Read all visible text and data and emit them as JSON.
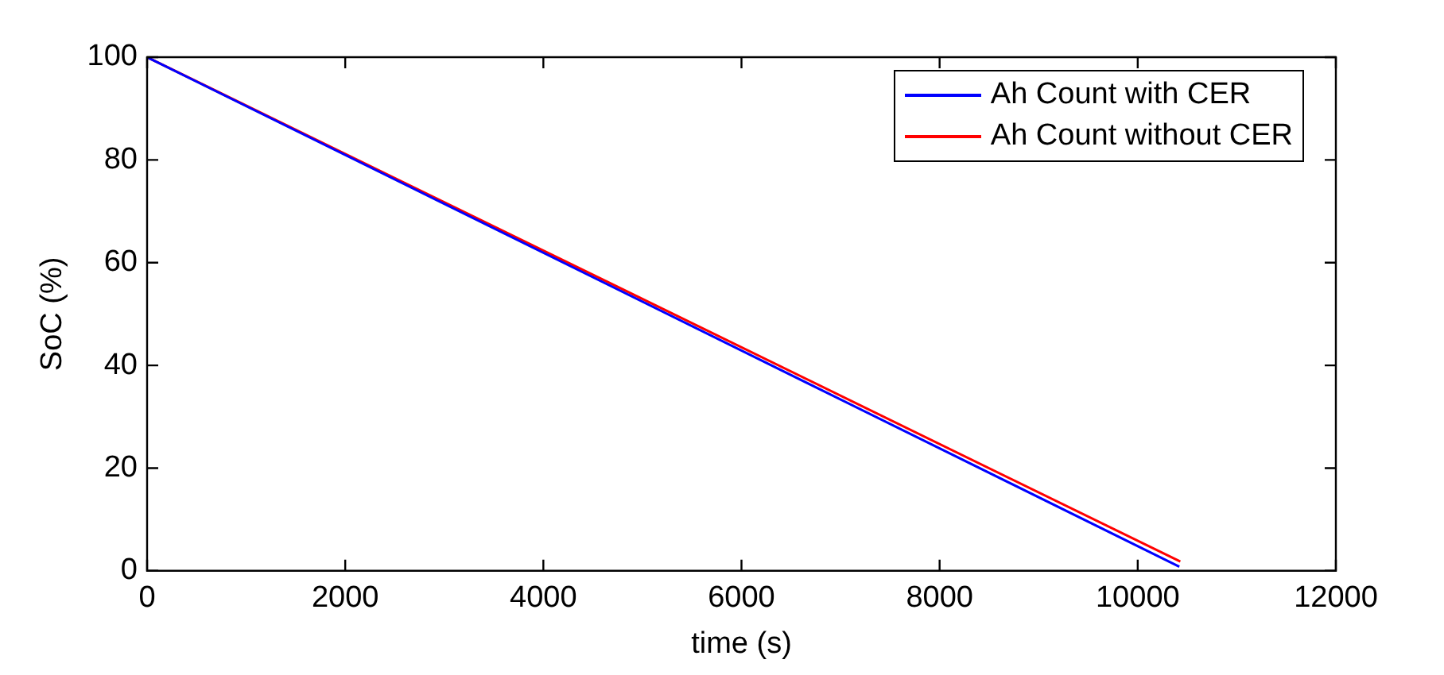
{
  "chart_data": {
    "type": "line",
    "xlabel": "time (s)",
    "ylabel": "SoC (%)",
    "xlim": [
      0,
      12000
    ],
    "xticks": [
      0,
      2000,
      4000,
      6000,
      8000,
      10000,
      12000
    ],
    "ylim": [
      0,
      100
    ],
    "yticks": [
      0,
      20,
      40,
      60,
      80,
      100
    ],
    "grid": false,
    "legend": "top right",
    "marker": "none",
    "line_style": "solid",
    "series": [
      {
        "name": "Ah Count with CER",
        "color": "#0000ff",
        "x": [
          0,
          10420
        ],
        "values": [
          100,
          0.8
        ]
      },
      {
        "name": "Ah Count without CER",
        "color": "#ff0000",
        "x": [
          0,
          10430
        ],
        "values": [
          100,
          1.8
        ]
      }
    ]
  }
}
